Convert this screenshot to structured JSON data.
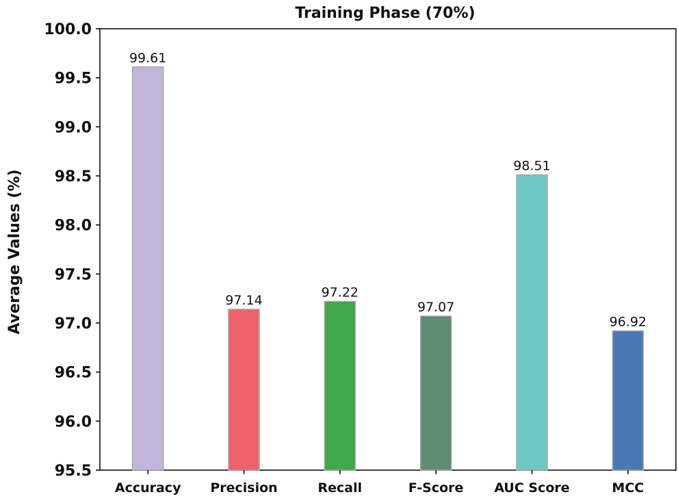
{
  "chart_data": {
    "type": "bar",
    "title": "Training Phase (70%)",
    "xlabel": "",
    "ylabel": "Average Values (%)",
    "categories": [
      "Accuracy",
      "Precision",
      "Recall",
      "F-Score",
      "AUC Score",
      "MCC"
    ],
    "values": [
      99.61,
      97.14,
      97.22,
      97.07,
      98.51,
      96.92
    ],
    "value_labels": [
      "99.61",
      "97.14",
      "97.22",
      "97.07",
      "98.51",
      "96.92"
    ],
    "colors": [
      "#c4b5da",
      "#f0616d",
      "#3fa84a",
      "#5e8c72",
      "#6dc8c5",
      "#4a78b6"
    ],
    "ylim": [
      95.5,
      100.0
    ],
    "yticks": [
      "95.5",
      "96.0",
      "96.5",
      "97.0",
      "97.5",
      "98.0",
      "98.5",
      "99.0",
      "99.5",
      "100.0"
    ],
    "ytick_values": [
      95.5,
      96.0,
      96.5,
      97.0,
      97.5,
      98.0,
      98.5,
      99.0,
      99.5,
      100.0
    ],
    "grid": false,
    "legend": "none"
  }
}
